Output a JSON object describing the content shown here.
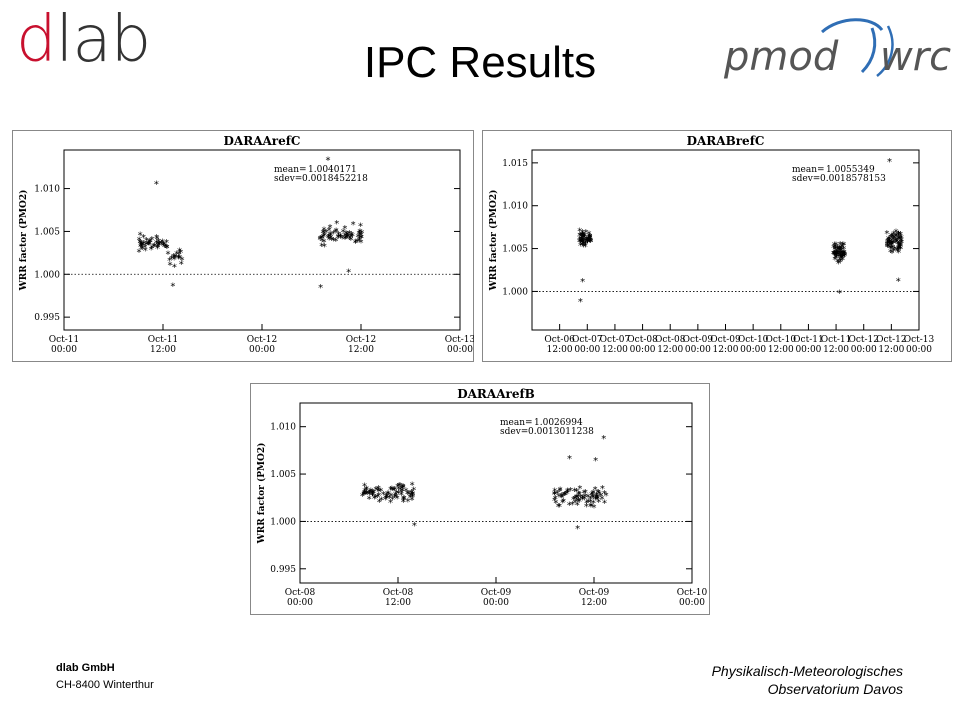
{
  "header": {
    "title": "IPC Results",
    "logo_left_d": "d",
    "logo_left_rest": "lab",
    "logo_right_text_1": "pmod",
    "logo_right_text_2": "wrc",
    "brand_red": "#c8102e"
  },
  "footer": {
    "company": "dlab GmbH",
    "address": "CH-8400  Winterthur",
    "institute_line1": "Physikalisch-Meteorologisches",
    "institute_line2": "Observatorium Davos"
  },
  "chart_data": [
    {
      "type": "scatter",
      "title": "DARAArefC",
      "ylabel": "WRR factor (PMO2)",
      "xlim": [
        "2011-10-11 00:00",
        "2011-10-13 00:00"
      ],
      "ylim": [
        0.9935,
        1.0145
      ],
      "yticks": [
        0.995,
        1.0,
        1.005,
        1.01
      ],
      "ytick_labels": [
        "0.995",
        "1.000",
        "1.005",
        "1.010"
      ],
      "xtick_labels": [
        [
          "Oct-11",
          "00:00"
        ],
        [
          "Oct-11",
          "12:00"
        ],
        [
          "Oct-12",
          "00:00"
        ],
        [
          "Oct-12",
          "12:00"
        ],
        [
          "Oct-13",
          "00:00"
        ]
      ],
      "reference_line": 1.0,
      "stats": {
        "mean_label": "mean=",
        "mean_value": "1.0040171",
        "sdev_label": "sdev=",
        "sdev_value": "0.0018452218"
      },
      "clusters": [
        {
          "x_start_hours": 9.0,
          "x_end_hours": 12.5,
          "y_mean": 1.0035,
          "y_spread": 0.0012,
          "count": 48
        },
        {
          "x_start_hours": 12.6,
          "x_end_hours": 14.3,
          "y_mean": 1.0018,
          "y_spread": 0.0012,
          "count": 18
        },
        {
          "x_start_hours": 31.0,
          "x_end_hours": 36.2,
          "y_mean": 1.0046,
          "y_spread": 0.0014,
          "count": 70
        }
      ],
      "outliers": [
        [
          11.2,
          1.0106
        ],
        [
          31.1,
          0.9985
        ],
        [
          32.0,
          1.0134
        ],
        [
          34.5,
          1.0003
        ],
        [
          13.2,
          0.9987
        ]
      ]
    },
    {
      "type": "scatter",
      "title": "DARABrefC",
      "ylabel": "WRR factor (PMO2)",
      "xlim": [
        "2011-10-06 00:00",
        "2011-10-13 00:00"
      ],
      "ylim": [
        0.9955,
        1.0165
      ],
      "yticks": [
        1.0,
        1.005,
        1.01,
        1.015
      ],
      "ytick_labels": [
        "1.000",
        "1.005",
        "1.010",
        "1.015"
      ],
      "xtick_labels": [
        [
          "Oct-06",
          "12:00"
        ],
        [
          "Oct-07",
          "00:00"
        ],
        [
          "Oct-07",
          "12:00"
        ],
        [
          "Oct-08",
          "00:00"
        ],
        [
          "Oct-08",
          "12:00"
        ],
        [
          "Oct-09",
          "00:00"
        ],
        [
          "Oct-09",
          "12:00"
        ],
        [
          "Oct-10",
          "00:00"
        ],
        [
          "Oct-10",
          "12:00"
        ],
        [
          "Oct-11",
          "00:00"
        ],
        [
          "Oct-11",
          "12:00"
        ],
        [
          "Oct-12",
          "00:00"
        ],
        [
          "Oct-12",
          "12:00"
        ],
        [
          "Oct-13",
          "00:00"
        ]
      ],
      "reference_line": 1.0,
      "stats": {
        "mean_label": "mean=",
        "mean_value": "1.0055349",
        "sdev_label": "sdev=",
        "sdev_value": "0.0018578153"
      },
      "clusters": [
        {
          "x_start_hours": 20.5,
          "x_end_hours": 25.5,
          "y_mean": 1.0062,
          "y_spread": 0.0011,
          "count": 55
        },
        {
          "x_start_hours": 130.5,
          "x_end_hours": 136.0,
          "y_mean": 1.0045,
          "y_spread": 0.0013,
          "count": 60
        },
        {
          "x_start_hours": 154.0,
          "x_end_hours": 160.5,
          "y_mean": 1.0058,
          "y_spread": 0.0014,
          "count": 70
        }
      ],
      "outliers": [
        [
          21.0,
          0.9989
        ],
        [
          22.0,
          1.0012
        ],
        [
          155.2,
          1.0152
        ],
        [
          133.5,
          0.9999
        ],
        [
          159.0,
          1.0013
        ]
      ]
    },
    {
      "type": "scatter",
      "title": "DARAArefB",
      "ylabel": "WRR factor (PMO2)",
      "xlim": [
        "2011-10-08 00:00",
        "2011-10-10 00:00"
      ],
      "ylim": [
        0.9935,
        1.0125
      ],
      "yticks": [
        0.995,
        1.0,
        1.005,
        1.01
      ],
      "ytick_labels": [
        "0.995",
        "1.000",
        "1.005",
        "1.010"
      ],
      "xtick_labels": [
        [
          "Oct-08",
          "00:00"
        ],
        [
          "Oct-08",
          "12:00"
        ],
        [
          "Oct-09",
          "00:00"
        ],
        [
          "Oct-09",
          "12:00"
        ],
        [
          "Oct-10",
          "00:00"
        ]
      ],
      "reference_line": 1.0,
      "stats": {
        "mean_label": "mean=",
        "mean_value": "1.0026994",
        "sdev_label": "sdev=",
        "sdev_value": "0.0013011238"
      },
      "clusters": [
        {
          "x_start_hours": 7.5,
          "x_end_hours": 14.2,
          "y_mean": 1.003,
          "y_spread": 0.0011,
          "count": 85
        },
        {
          "x_start_hours": 31.0,
          "x_end_hours": 37.5,
          "y_mean": 1.0026,
          "y_spread": 0.0012,
          "count": 80
        }
      ],
      "outliers": [
        [
          33.0,
          1.0067
        ],
        [
          37.2,
          1.0088
        ],
        [
          14.0,
          0.9996
        ],
        [
          36.2,
          1.0065
        ],
        [
          34.0,
          0.9993
        ]
      ]
    }
  ]
}
